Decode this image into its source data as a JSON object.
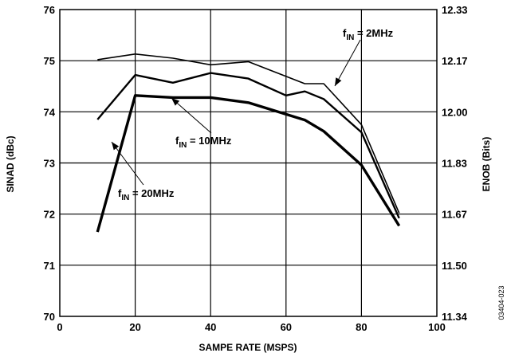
{
  "chart_data": {
    "type": "line",
    "title": "",
    "xlabel": "SAMPE RATE (MSPS)",
    "ylabel": "SINAD (dBc)",
    "y2label": "ENOB (Bits)",
    "xlim": [
      0,
      100
    ],
    "ylim": [
      70,
      76
    ],
    "x_ticks": [
      "0",
      "20",
      "40",
      "60",
      "80",
      "100"
    ],
    "y_ticks": [
      "70",
      "71",
      "72",
      "73",
      "74",
      "75",
      "76"
    ],
    "y2_ticks": [
      "11.34",
      "11.50",
      "11.67",
      "11.83",
      "12.00",
      "12.17",
      "12.33"
    ],
    "grid": true,
    "series": [
      {
        "name": "fIN = 2MHz",
        "label_main": "f",
        "label_sub": "IN",
        "label_rest": " = 2MHz",
        "line_weight": "thin",
        "x": [
          10,
          20,
          30,
          40,
          50,
          65,
          70,
          80,
          90
        ],
        "y": [
          75.02,
          75.13,
          75.05,
          74.92,
          74.98,
          74.55,
          74.55,
          73.75,
          72.02
        ]
      },
      {
        "name": "fIN = 10MHz",
        "label_main": "f",
        "label_sub": "IN",
        "label_rest": " = 10MHz",
        "line_weight": "medium",
        "x": [
          10,
          20,
          30,
          40,
          50,
          60,
          65,
          70,
          80,
          90
        ],
        "y": [
          73.85,
          74.72,
          74.57,
          74.76,
          74.65,
          74.32,
          74.4,
          74.25,
          73.6,
          71.92
        ]
      },
      {
        "name": "fIN = 20MHz",
        "label_main": "f",
        "label_sub": "IN",
        "label_rest": " = 20MHz",
        "line_weight": "thick",
        "x": [
          10,
          20,
          30,
          40,
          50,
          65,
          70,
          80,
          90
        ],
        "y": [
          71.65,
          74.32,
          74.28,
          74.28,
          74.18,
          73.84,
          73.62,
          72.96,
          71.77
        ]
      }
    ]
  },
  "figure_id": "03404-023"
}
